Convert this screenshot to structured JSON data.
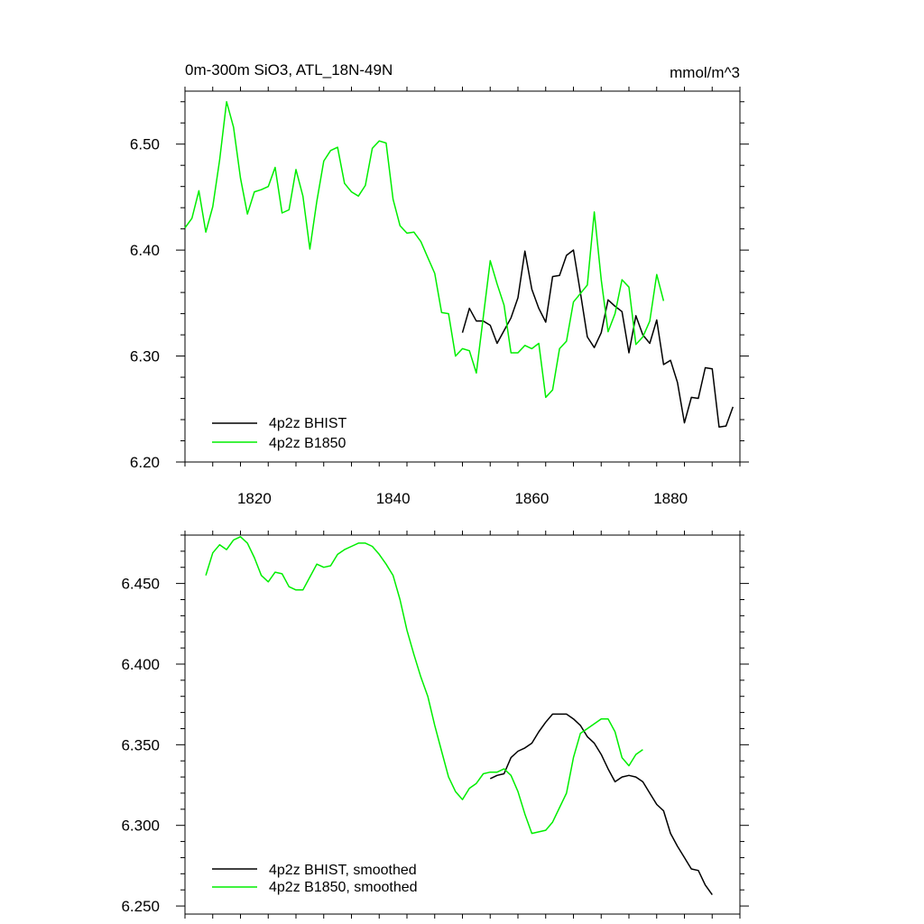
{
  "colors": {
    "bhist": "#000000",
    "b1850": "#00ee00"
  },
  "chart_data": [
    {
      "type": "line",
      "title": "0m-300m SiO3, ATL_18N-49N",
      "units": "mmol/m^3",
      "xlim": [
        1810,
        1890
      ],
      "ylim": [
        6.2,
        6.55
      ],
      "xticks": [
        1820,
        1840,
        1860,
        1880
      ],
      "xtick_labels": [
        "1820",
        "1840",
        "1860",
        "1880"
      ],
      "yticks": [
        6.2,
        6.3,
        6.4,
        6.5
      ],
      "ytick_labels": [
        "6.20",
        "6.30",
        "6.40",
        "6.50"
      ],
      "legend": "bottom-left",
      "series": [
        {
          "name": "4p2z BHIST",
          "color_key": "bhist",
          "x": [
            1850,
            1851,
            1852,
            1853,
            1854,
            1855,
            1856,
            1857,
            1858,
            1859,
            1860,
            1861,
            1862,
            1863,
            1864,
            1865,
            1866,
            1867,
            1868,
            1869,
            1870,
            1871,
            1872,
            1873,
            1874,
            1875,
            1876,
            1877,
            1878,
            1879,
            1880,
            1881,
            1882,
            1883,
            1884,
            1885,
            1886,
            1887,
            1888,
            1889
          ],
          "values": [
            6.322,
            6.345,
            6.333,
            6.333,
            6.329,
            6.312,
            6.324,
            6.336,
            6.355,
            6.399,
            6.363,
            6.345,
            6.332,
            6.375,
            6.376,
            6.395,
            6.4,
            6.36,
            6.318,
            6.308,
            6.322,
            6.353,
            6.347,
            6.342,
            6.303,
            6.338,
            6.32,
            6.312,
            6.334,
            6.292,
            6.296,
            6.275,
            6.237,
            6.261,
            6.26,
            6.289,
            6.288,
            6.233,
            6.234,
            6.252
          ]
        },
        {
          "name": "4p2z B1850",
          "color_key": "b1850",
          "x": [
            1810,
            1811,
            1812,
            1813,
            1814,
            1815,
            1816,
            1817,
            1818,
            1819,
            1820,
            1821,
            1822,
            1823,
            1824,
            1825,
            1826,
            1827,
            1828,
            1829,
            1830,
            1831,
            1832,
            1833,
            1834,
            1835,
            1836,
            1837,
            1838,
            1839,
            1840,
            1841,
            1842,
            1843,
            1844,
            1845,
            1846,
            1847,
            1848,
            1849,
            1850,
            1851,
            1852,
            1853,
            1854,
            1855,
            1856,
            1857,
            1858,
            1859,
            1860,
            1861,
            1862,
            1863,
            1864,
            1865,
            1866,
            1867,
            1868,
            1869,
            1870,
            1871,
            1872,
            1873,
            1874,
            1875,
            1876,
            1877,
            1878,
            1879
          ],
          "values": [
            6.421,
            6.43,
            6.456,
            6.417,
            6.441,
            6.485,
            6.54,
            6.516,
            6.468,
            6.434,
            6.455,
            6.457,
            6.46,
            6.478,
            6.435,
            6.438,
            6.476,
            6.451,
            6.401,
            6.446,
            6.484,
            6.494,
            6.497,
            6.463,
            6.455,
            6.451,
            6.461,
            6.496,
            6.503,
            6.501,
            6.448,
            6.423,
            6.416,
            6.417,
            6.408,
            6.393,
            6.378,
            6.341,
            6.34,
            6.3,
            6.307,
            6.305,
            6.284,
            6.337,
            6.39,
            6.368,
            6.348,
            6.303,
            6.303,
            6.31,
            6.307,
            6.312,
            6.261,
            6.268,
            6.307,
            6.314,
            6.351,
            6.359,
            6.367,
            6.436,
            6.372,
            6.323,
            6.34,
            6.372,
            6.365,
            6.311,
            6.318,
            6.333,
            6.377,
            6.352
          ]
        }
      ]
    },
    {
      "type": "line",
      "title": "",
      "xlim": [
        1810,
        1890
      ],
      "ylim": [
        6.245,
        6.48
      ],
      "xticks": [
        1820,
        1840,
        1860,
        1880
      ],
      "yticks": [
        6.25,
        6.3,
        6.35,
        6.4,
        6.45
      ],
      "ytick_labels": [
        "6.250",
        "6.300",
        "6.350",
        "6.400",
        "6.450"
      ],
      "legend": "bottom-left",
      "series": [
        {
          "name": "4p2z BHIST, smoothed",
          "color_key": "bhist",
          "x": [
            1854,
            1855,
            1856,
            1857,
            1858,
            1859,
            1860,
            1861,
            1862,
            1863,
            1864,
            1865,
            1866,
            1867,
            1868,
            1869,
            1870,
            1871,
            1872,
            1873,
            1874,
            1875,
            1876,
            1877,
            1878,
            1879,
            1880,
            1881,
            1882,
            1883,
            1884,
            1885,
            1886
          ],
          "values": [
            6.329,
            6.331,
            6.332,
            6.342,
            6.346,
            6.348,
            6.351,
            6.358,
            6.364,
            6.369,
            6.369,
            6.369,
            6.366,
            6.362,
            6.355,
            6.351,
            6.344,
            6.335,
            6.327,
            6.33,
            6.331,
            6.33,
            6.327,
            6.32,
            6.313,
            6.309,
            6.295,
            6.287,
            6.28,
            6.273,
            6.272,
            6.263,
            6.257
          ]
        },
        {
          "name": "4p2z B1850, smoothed",
          "color_key": "b1850",
          "x": [
            1813,
            1814,
            1815,
            1816,
            1817,
            1818,
            1819,
            1820,
            1821,
            1822,
            1823,
            1824,
            1825,
            1826,
            1827,
            1828,
            1829,
            1830,
            1831,
            1832,
            1833,
            1834,
            1835,
            1836,
            1837,
            1838,
            1839,
            1840,
            1841,
            1842,
            1843,
            1844,
            1845,
            1846,
            1847,
            1848,
            1849,
            1850,
            1851,
            1852,
            1853,
            1854,
            1855,
            1856,
            1857,
            1858,
            1859,
            1860,
            1861,
            1862,
            1863,
            1864,
            1865,
            1866,
            1867,
            1868,
            1869,
            1870,
            1871,
            1872,
            1873,
            1874,
            1875,
            1876
          ],
          "values": [
            6.455,
            6.469,
            6.474,
            6.471,
            6.477,
            6.479,
            6.475,
            6.466,
            6.455,
            6.451,
            6.457,
            6.456,
            6.448,
            6.446,
            6.446,
            6.454,
            6.462,
            6.46,
            6.461,
            6.468,
            6.471,
            6.473,
            6.475,
            6.475,
            6.473,
            6.468,
            6.462,
            6.455,
            6.44,
            6.421,
            6.406,
            6.392,
            6.38,
            6.362,
            6.346,
            6.33,
            6.321,
            6.316,
            6.323,
            6.326,
            6.332,
            6.333,
            6.333,
            6.335,
            6.331,
            6.321,
            6.307,
            6.295,
            6.296,
            6.297,
            6.302,
            6.311,
            6.32,
            6.342,
            6.357,
            6.36,
            6.363,
            6.366,
            6.366,
            6.358,
            6.342,
            6.337,
            6.344,
            6.347
          ]
        }
      ]
    }
  ]
}
